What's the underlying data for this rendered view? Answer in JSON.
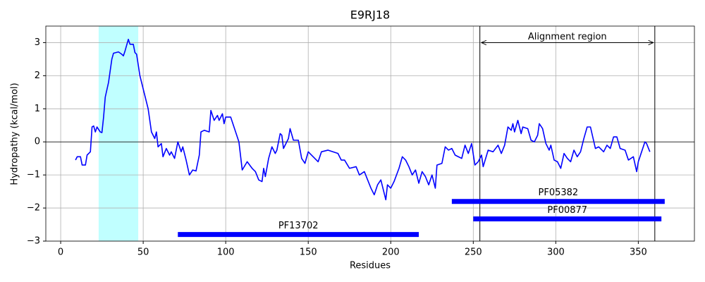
{
  "chart_data": {
    "type": "line",
    "title": "E9RJ18",
    "xlabel": "Residues",
    "ylabel": "Hydropathy (kcal/mol)",
    "x": [
      9,
      10,
      12,
      13,
      15,
      16,
      18,
      19,
      20,
      21,
      22,
      24,
      25,
      26,
      27,
      29,
      31,
      32,
      35,
      37,
      38,
      39,
      41,
      42,
      44,
      45,
      46,
      48,
      50,
      53,
      55,
      57,
      58,
      59,
      61,
      62,
      64,
      66,
      67,
      69,
      71,
      73,
      74,
      76,
      78,
      80,
      82,
      84,
      85,
      87,
      90,
      91,
      93,
      95,
      96,
      98,
      99,
      100,
      103,
      106,
      108,
      110,
      113,
      116,
      118,
      120,
      122,
      123,
      124,
      126,
      128,
      130,
      131,
      133,
      134,
      135,
      138,
      139,
      141,
      144,
      146,
      148,
      150,
      156,
      158,
      162,
      168,
      170,
      172,
      175,
      179,
      181,
      184,
      188,
      190,
      192,
      194,
      197,
      198,
      200,
      202,
      205,
      207,
      209,
      211,
      213,
      215,
      217,
      219,
      221,
      223,
      225,
      227,
      228,
      231,
      233,
      235,
      237,
      239,
      241,
      243,
      245,
      247,
      249,
      251,
      253,
      255,
      256,
      259,
      262,
      265,
      267,
      269,
      271,
      273,
      274,
      275,
      277,
      279,
      280,
      283,
      285,
      287,
      289,
      290,
      292,
      294,
      296,
      297,
      299,
      301,
      303,
      305,
      307,
      309,
      311,
      313,
      315,
      317,
      319,
      321,
      324,
      326,
      329,
      331,
      333,
      335,
      337,
      339,
      342,
      344,
      347,
      349,
      350,
      352,
      354,
      355,
      357
    ],
    "values": [
      -0.55,
      -0.45,
      -0.45,
      -0.7,
      -0.7,
      -0.4,
      -0.3,
      0.45,
      0.48,
      0.3,
      0.45,
      0.3,
      0.28,
      0.75,
      1.35,
      1.8,
      2.5,
      2.68,
      2.72,
      2.65,
      2.6,
      2.75,
      3.1,
      2.95,
      2.95,
      2.7,
      2.65,
      2.0,
      1.6,
      1.0,
      0.3,
      0.1,
      0.3,
      -0.15,
      -0.05,
      -0.45,
      -0.2,
      -0.4,
      -0.3,
      -0.5,
      0.0,
      -0.3,
      -0.15,
      -0.55,
      -1.0,
      -0.85,
      -0.88,
      -0.4,
      0.3,
      0.35,
      0.3,
      0.95,
      0.65,
      0.8,
      0.65,
      0.85,
      0.55,
      0.75,
      0.75,
      0.3,
      0.0,
      -0.85,
      -0.6,
      -0.8,
      -0.9,
      -1.15,
      -1.2,
      -0.8,
      -1.05,
      -0.5,
      -0.15,
      -0.35,
      -0.25,
      0.25,
      0.2,
      -0.2,
      0.1,
      0.4,
      0.05,
      0.05,
      -0.5,
      -0.65,
      -0.3,
      -0.6,
      -0.3,
      -0.25,
      -0.35,
      -0.55,
      -0.55,
      -0.8,
      -0.75,
      -1.0,
      -0.9,
      -1.4,
      -1.6,
      -1.3,
      -1.15,
      -1.75,
      -1.3,
      -1.4,
      -1.2,
      -0.8,
      -0.45,
      -0.55,
      -0.75,
      -1.0,
      -0.85,
      -1.25,
      -0.9,
      -1.05,
      -1.3,
      -1.0,
      -1.4,
      -0.7,
      -0.65,
      -0.15,
      -0.25,
      -0.2,
      -0.4,
      -0.45,
      -0.5,
      -0.1,
      -0.35,
      -0.05,
      -0.7,
      -0.6,
      -0.4,
      -0.75,
      -0.25,
      -0.3,
      -0.1,
      -0.35,
      -0.1,
      0.45,
      0.35,
      0.55,
      0.3,
      0.65,
      0.25,
      0.45,
      0.4,
      0.05,
      0.0,
      0.2,
      0.55,
      0.4,
      -0.05,
      -0.25,
      -0.1,
      -0.55,
      -0.6,
      -0.8,
      -0.35,
      -0.5,
      -0.6,
      -0.25,
      -0.45,
      -0.3,
      0.1,
      0.45,
      0.45,
      -0.2,
      -0.15,
      -0.3,
      -0.1,
      -0.2,
      0.15,
      0.15,
      -0.2,
      -0.25,
      -0.55,
      -0.45,
      -0.9,
      -0.6,
      -0.3,
      0.0,
      -0.05,
      -0.3
    ],
    "color": "#0000ff",
    "xlim": [
      -9,
      384
    ],
    "ylim": [
      -3,
      3.5
    ],
    "xticks": [
      0,
      50,
      100,
      150,
      200,
      250,
      300,
      350
    ],
    "yticks": [
      {
        "value": -3,
        "label": "−3"
      },
      {
        "value": -2,
        "label": "−2"
      },
      {
        "value": -1,
        "label": "−1"
      },
      0,
      1,
      2,
      3
    ],
    "grid": true,
    "hline": 0,
    "highlight_span": [
      23,
      47
    ],
    "highlight_color": "#c0ffff",
    "alignment": {
      "label": "Alignment region",
      "start": 254,
      "end": 360,
      "y": 3.0
    },
    "domains": [
      {
        "label": "PF05382",
        "start": 237,
        "end": 366,
        "y": -1.8
      },
      {
        "label": "PF00877",
        "start": 250,
        "end": 364,
        "y": -2.33
      },
      {
        "label": "PF13702",
        "start": 71,
        "end": 217,
        "y": -2.8
      }
    ],
    "domain_color": "#0000ff"
  }
}
